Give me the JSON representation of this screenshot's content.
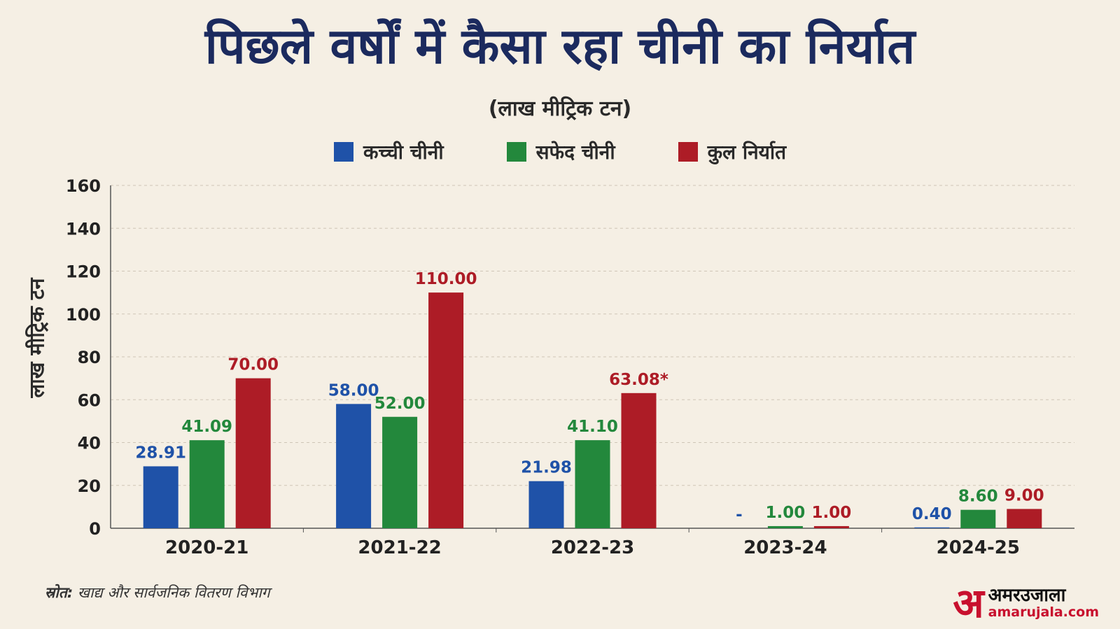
{
  "chart_data": {
    "type": "bar",
    "title": "पिछले वर्षों में कैसा रहा चीनी का निर्यात",
    "subtitle": "(लाख मीट्रिक टन)",
    "ylabel": "लाख मीट्रिक टन",
    "xlabel": "",
    "ylim": [
      0,
      160
    ],
    "yticks": [
      0,
      20,
      40,
      60,
      80,
      100,
      120,
      140,
      160
    ],
    "grid": true,
    "legend_position": "top-center",
    "categories": [
      "2020-21",
      "2021-22",
      "2022-23",
      "2023-24",
      "2024-25"
    ],
    "series": [
      {
        "name": "कच्ची चीनी",
        "color": "#1f52a8",
        "values": [
          28.91,
          58.0,
          21.98,
          null,
          0.4
        ],
        "labels": [
          "28.91",
          "58.00",
          "21.98",
          "-",
          "0.40"
        ]
      },
      {
        "name": "सफेद चीनी",
        "color": "#23883c",
        "values": [
          41.09,
          52.0,
          41.1,
          1.0,
          8.6
        ],
        "labels": [
          "41.09",
          "52.00",
          "41.10",
          "1.00",
          "8.60"
        ]
      },
      {
        "name": "कुल निर्यात",
        "color": "#ad1c26",
        "values": [
          70.0,
          110.0,
          63.08,
          1.0,
          9.0
        ],
        "labels": [
          "70.00",
          "110.00",
          "63.08*",
          "1.00",
          "9.00"
        ]
      }
    ]
  },
  "source": {
    "prefix": "स्रोत:",
    "text": " खाद्य और सार्वजनिक वितरण विभाग"
  },
  "logo": {
    "mark": "अ",
    "name": "अमरउजाला",
    "url": "amarujala.com"
  }
}
